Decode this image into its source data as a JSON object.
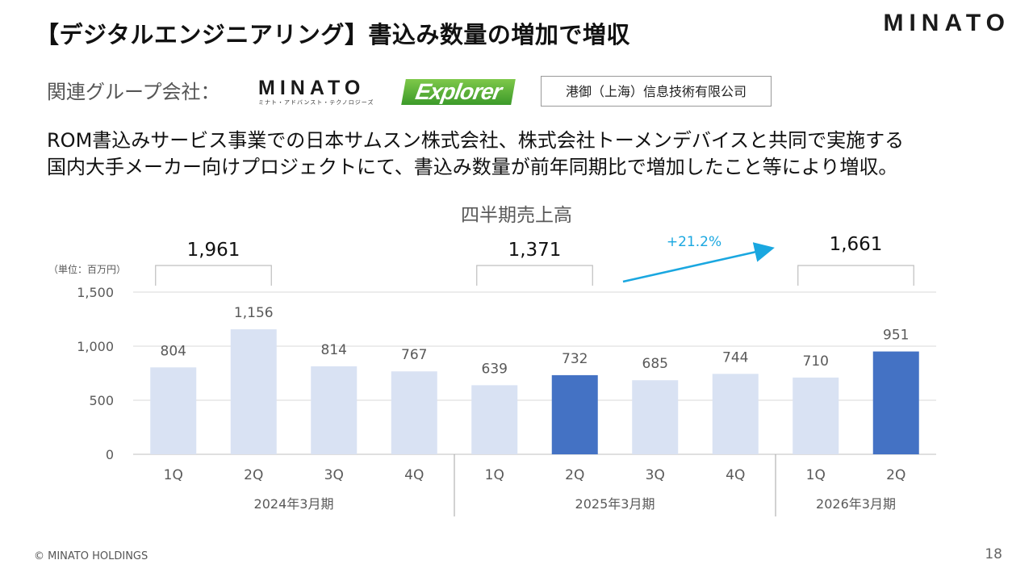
{
  "title": "【デジタルエンジニアリング】書込み数量の増加で増収",
  "brand": {
    "top_logo": "MINATO"
  },
  "related": {
    "label": "関連グループ会社：",
    "minato_logo": "MINATO",
    "minato_logo_sub": "ミナト・アドバンスト・テクノロジーズ",
    "explorer_logo": "Explorer",
    "china_company": "港御（上海）信息技術有限公司"
  },
  "body": {
    "line1": "ROM書込みサービス事業での日本サムスン株式会社、株式会社トーメンデバイスと共同で実施する",
    "line2": "国内大手メーカー向けプロジェクトにて、書込み数量が前年同期比で増加したこと等により増収。"
  },
  "chart_data": {
    "type": "bar",
    "title": "四半期売上高",
    "unit_label": "（単位：百万円）",
    "ylim": [
      0,
      1500
    ],
    "yticks": [
      0,
      500,
      1000,
      1500
    ],
    "yticklabels": [
      "0",
      "500",
      "1,000",
      "1,500"
    ],
    "categories": [
      "1Q",
      "2Q",
      "3Q",
      "4Q",
      "1Q",
      "2Q",
      "3Q",
      "4Q",
      "1Q",
      "2Q"
    ],
    "values": [
      804,
      1156,
      814,
      767,
      639,
      732,
      685,
      744,
      710,
      951
    ],
    "value_labels": [
      "804",
      "1,156",
      "814",
      "767",
      "639",
      "732",
      "685",
      "744",
      "710",
      "951"
    ],
    "highlighted": [
      false,
      false,
      false,
      false,
      false,
      true,
      false,
      false,
      false,
      true
    ],
    "groups": [
      {
        "label": "2024年3月期",
        "start": 0,
        "end": 3
      },
      {
        "label": "2025年3月期",
        "start": 4,
        "end": 7
      },
      {
        "label": "2026年3月期",
        "start": 8,
        "end": 9
      }
    ],
    "half_year_totals": [
      {
        "label": "1,961",
        "start": 0,
        "end": 1
      },
      {
        "label": "1,371",
        "start": 4,
        "end": 5
      },
      {
        "label": "1,661",
        "start": 8,
        "end": 9
      }
    ],
    "growth_label": "+21.2%",
    "colors": {
      "light": "#d9e2f3",
      "highlight": "#4472c4",
      "growth": "#1aa7e0",
      "grid": "#d9d9d9",
      "text": "#595959"
    }
  },
  "footer": {
    "copyright": "© MINATO HOLDINGS",
    "page": "18"
  }
}
